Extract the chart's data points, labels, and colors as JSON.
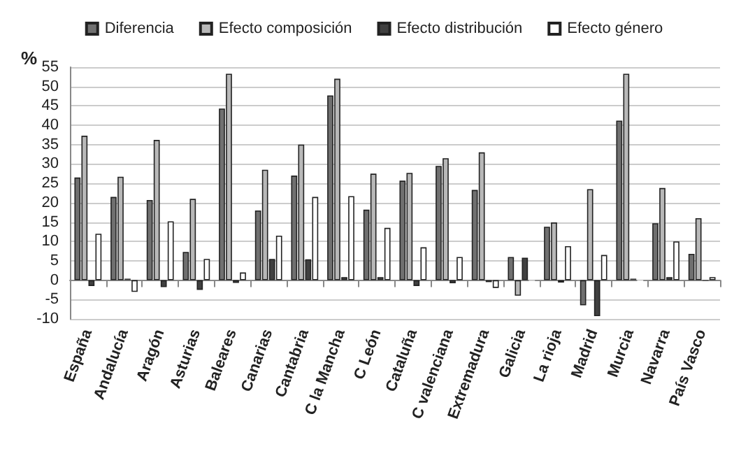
{
  "chart_data": {
    "type": "bar",
    "ylabel": "%",
    "categories": [
      "España",
      "Andalucía",
      "Aragón",
      "Asturias",
      "Baleares",
      "Canarias",
      "Cantabria",
      "C la Mancha",
      "C León",
      "Cataluña",
      "C valenciana",
      "Extremadura",
      "Galicia",
      "La rioja",
      "Madrid",
      "Murcia",
      "Navarra",
      "País Vasco"
    ],
    "series": [
      {
        "name": "Diferencia",
        "color": "#707070",
        "values": [
          26.5,
          21.5,
          20.7,
          7.3,
          44.3,
          18,
          27,
          47.7,
          18.2,
          25.7,
          29.5,
          23.3,
          6,
          13.8,
          -6.5,
          41.2,
          14.7,
          6.8
        ]
      },
      {
        "name": "Efecto composición",
        "color": "#b8b8b8",
        "values": [
          37.3,
          26.7,
          36.2,
          21,
          53.3,
          28.5,
          35,
          52,
          27.5,
          27.7,
          31.5,
          33,
          -4,
          14.9,
          23.5,
          53.3,
          23.8,
          16
        ]
      },
      {
        "name": "Efecto distribución",
        "color": "#404040",
        "values": [
          -1.5,
          0.4,
          -1.8,
          -2.5,
          -0.7,
          5.5,
          5.4,
          0.8,
          0.8,
          -1.5,
          -0.8,
          -0.5,
          5.8,
          -0.6,
          -9.3,
          0.4,
          0.8,
          -0.2
        ]
      },
      {
        "name": "Efecto género",
        "color": "#ffffff",
        "values": [
          12,
          -3,
          15.2,
          5.5,
          2,
          11.5,
          21.5,
          21.7,
          13.5,
          8.5,
          6,
          -2,
          -0.2,
          8.8,
          6.5,
          -0.4,
          10,
          0.8
        ]
      }
    ],
    "ylim": [
      -10,
      55
    ],
    "yticks": [
      -10,
      -5,
      0,
      5,
      10,
      15,
      20,
      25,
      30,
      35,
      40,
      45,
      50,
      55
    ],
    "grid": "y",
    "legend": "top"
  }
}
